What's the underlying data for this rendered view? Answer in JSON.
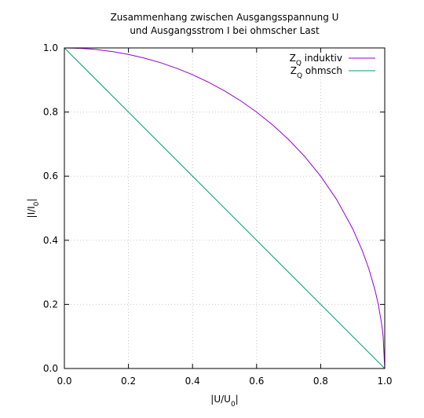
{
  "chart_data": {
    "type": "line",
    "title": [
      "Zusammenhang zwischen Ausgangsspannung U",
      "und Ausgangsstrom I bei ohmscher Last"
    ],
    "xlabel": {
      "base": "|U/U",
      "sub": "0",
      "tail": "|"
    },
    "ylabel": {
      "base": "|I/I",
      "sub": "0",
      "tail": "|"
    },
    "xlim": [
      0,
      1
    ],
    "ylim": [
      0,
      1
    ],
    "xticks": [
      "0.0",
      "0.2",
      "0.4",
      "0.6",
      "0.8",
      "1.0"
    ],
    "yticks": [
      "0.0",
      "0.2",
      "0.4",
      "0.6",
      "0.8",
      "1.0"
    ],
    "grid": true,
    "legend_position": "top-right",
    "series": [
      {
        "name": {
          "base": "Z",
          "sub": "Q",
          "tail": " induktiv"
        },
        "color": "#9400d3",
        "x": [
          0,
          0.05,
          0.1,
          0.15,
          0.2,
          0.25,
          0.3,
          0.35,
          0.4,
          0.45,
          0.5,
          0.55,
          0.6,
          0.65,
          0.7,
          0.75,
          0.8,
          0.85,
          0.9,
          0.93,
          0.95,
          0.97,
          0.98,
          0.99,
          0.995,
          1.0
        ],
        "y": [
          1.0,
          0.9987,
          0.995,
          0.9887,
          0.9798,
          0.9682,
          0.9539,
          0.9367,
          0.9165,
          0.893,
          0.866,
          0.8352,
          0.8,
          0.7599,
          0.7141,
          0.6614,
          0.6,
          0.5268,
          0.4359,
          0.3676,
          0.3122,
          0.2431,
          0.199,
          0.1411,
          0.0999,
          0.0
        ]
      },
      {
        "name": {
          "base": "Z",
          "sub": "Q",
          "tail": " ohmsch"
        },
        "color": "#009e73",
        "x": [
          0,
          1
        ],
        "y": [
          1,
          0
        ]
      }
    ]
  }
}
